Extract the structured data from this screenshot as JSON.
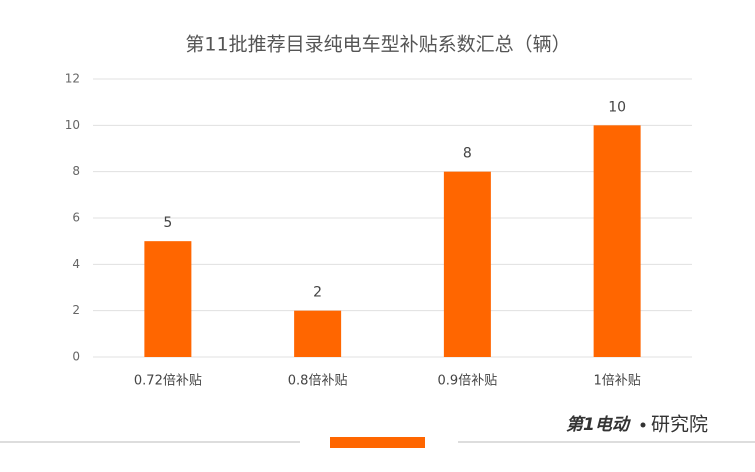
{
  "chart_data": {
    "type": "bar",
    "title": "第11批推荐目录纯电车型补贴系数汇总（辆）",
    "categories": [
      "0.72倍补贴",
      "0.8倍补贴",
      "0.9倍补贴",
      "1倍补贴"
    ],
    "values": [
      5,
      2,
      8,
      10
    ],
    "color": "#ff6600",
    "ylim": [
      0,
      12
    ],
    "yticks": [
      0,
      2,
      4,
      6,
      8,
      10,
      12
    ],
    "grid": true
  },
  "brand": {
    "logo": "第1电动",
    "suffix": "研究院"
  }
}
